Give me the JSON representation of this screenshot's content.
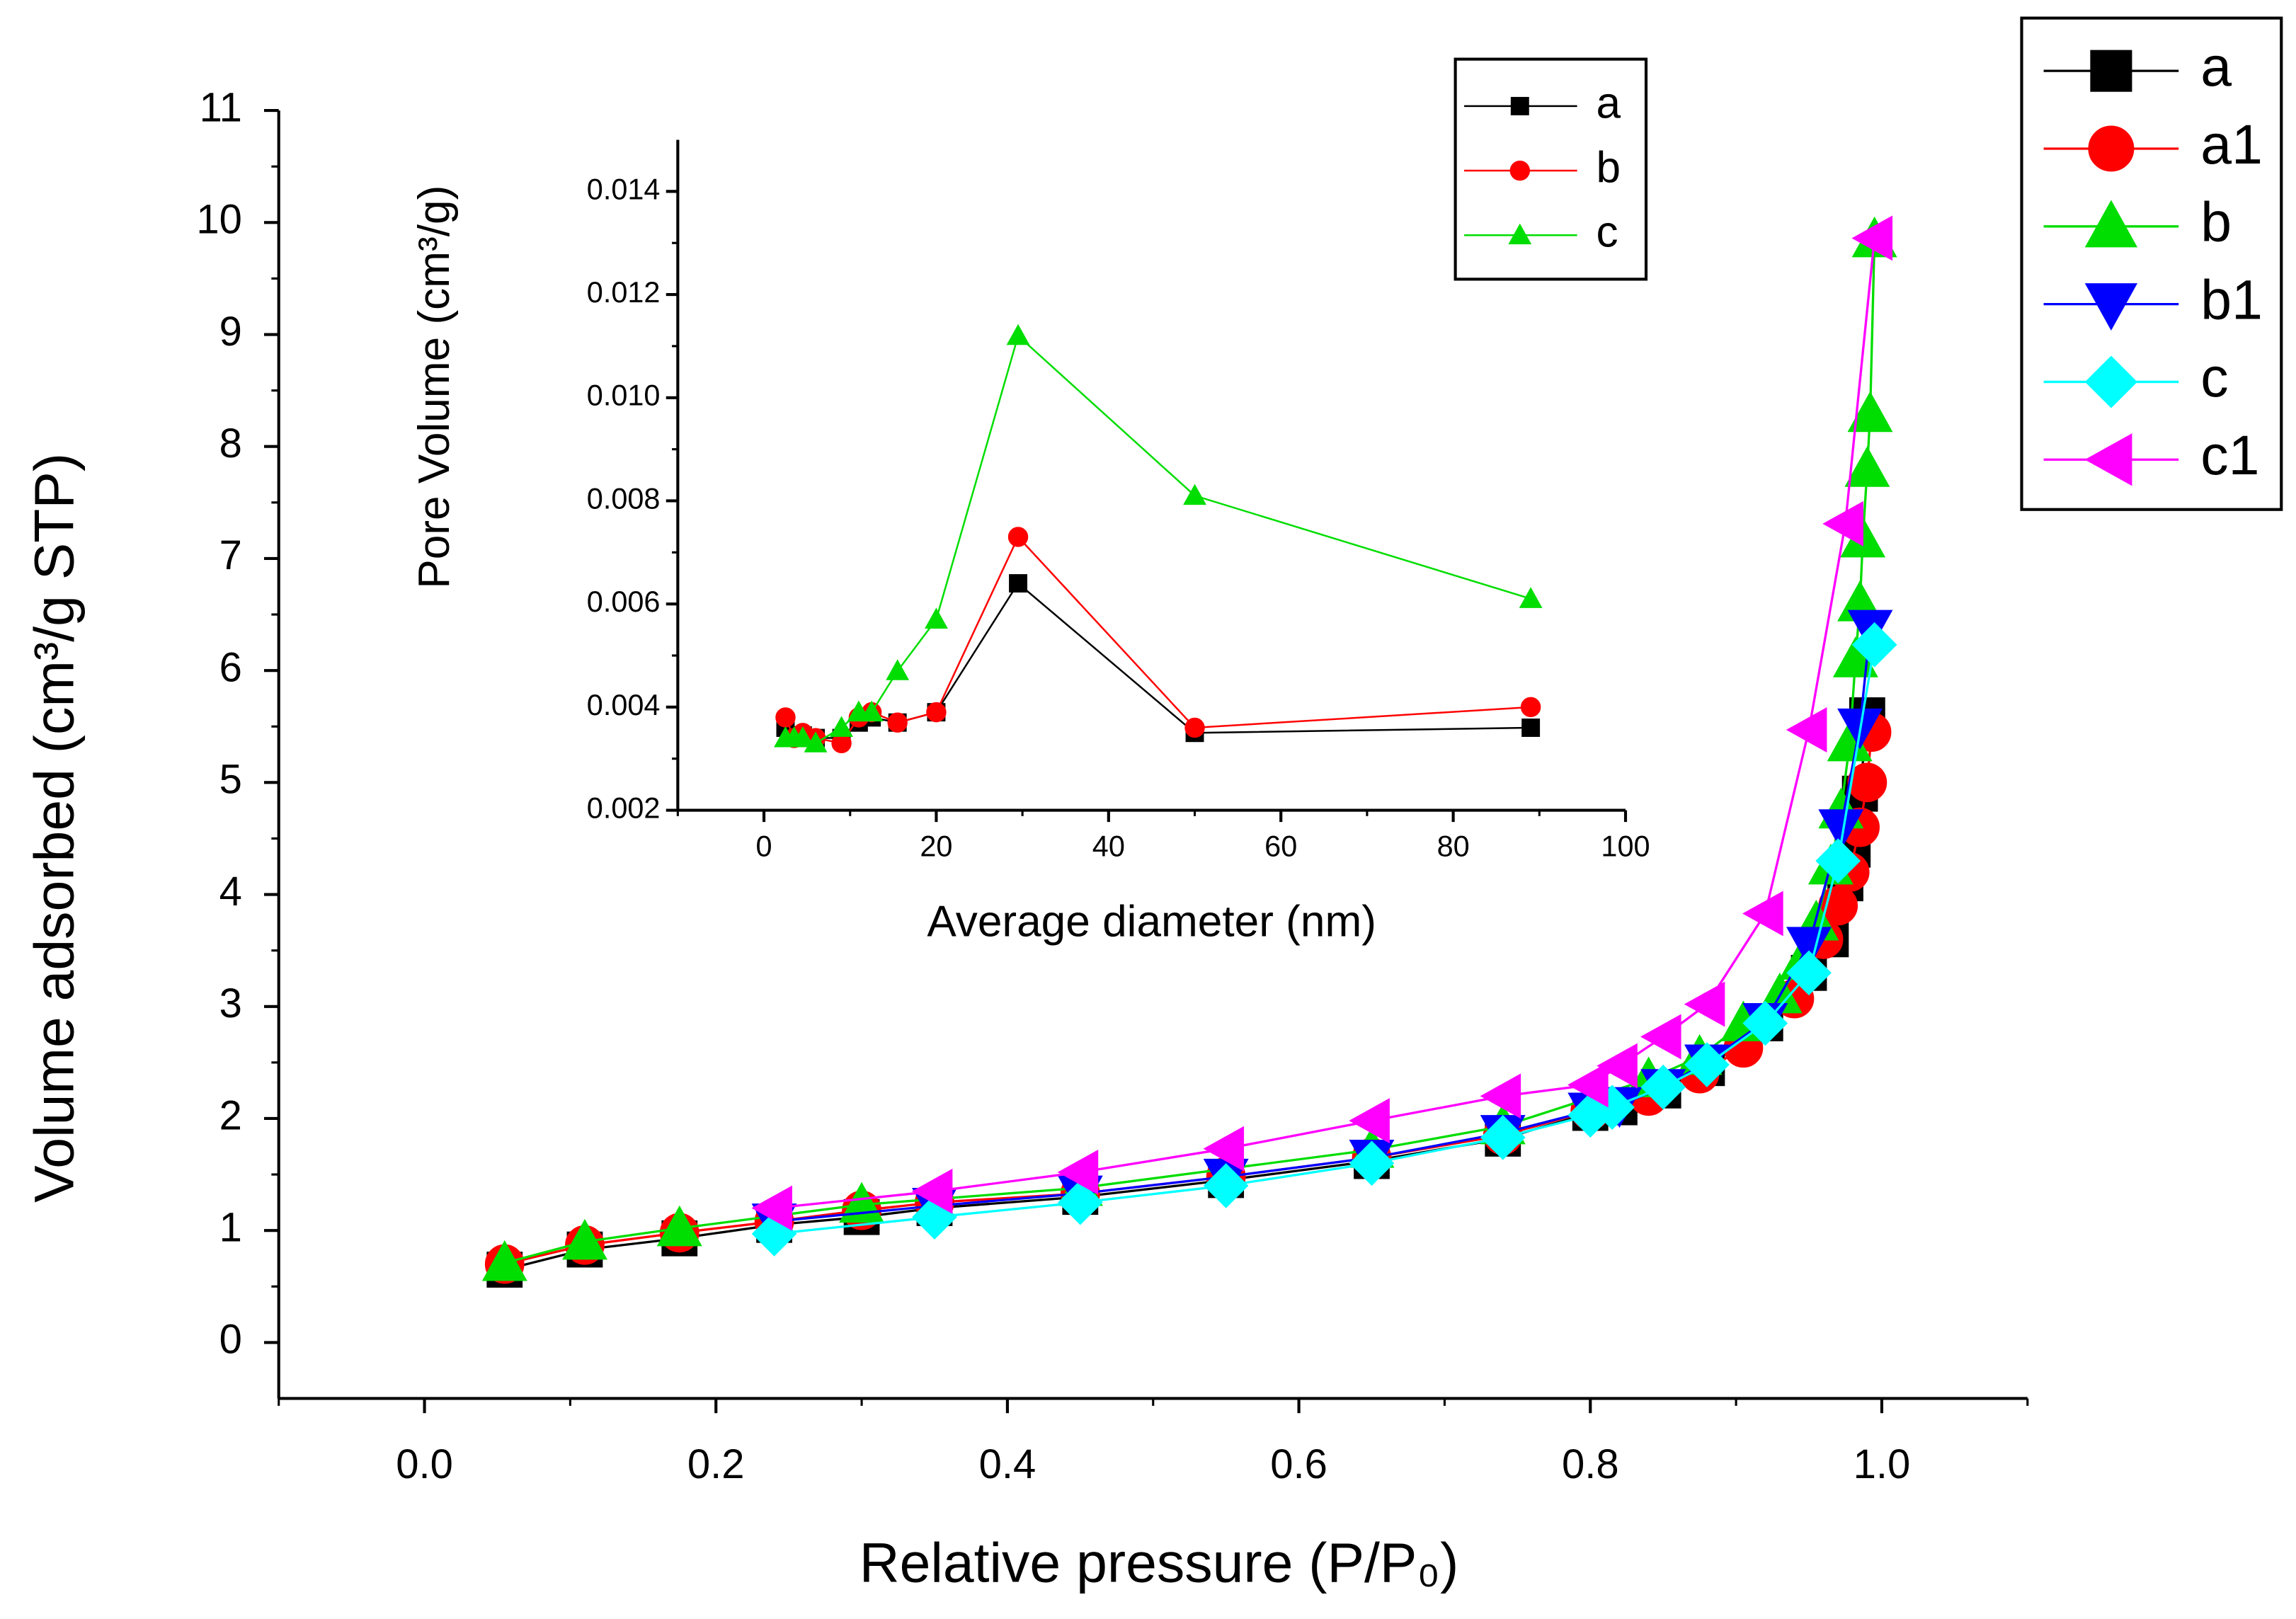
{
  "chart_data": [
    {
      "type": "line",
      "xlabel": "Relative pressure (P/P₀)",
      "ylabel": "Volume adsorbed (cm³/g STP)",
      "xlim": [
        -0.1,
        1.1
      ],
      "xticks": [
        {
          "value": 0,
          "label": "0.0"
        },
        {
          "value": 0.2,
          "label": "0.2"
        },
        {
          "value": 0.4,
          "label": "0.4"
        },
        {
          "value": 0.6,
          "label": "0.6"
        },
        {
          "value": 0.8,
          "label": "0.8"
        },
        {
          "value": 1,
          "label": "1.0"
        }
      ],
      "ylim": [
        -0.5,
        11
      ],
      "yticks": [
        0,
        1,
        2,
        3,
        4,
        5,
        6,
        7,
        8,
        9,
        10,
        11
      ],
      "legend": "top-right",
      "series": [
        {
          "name": "a",
          "color": "#000000",
          "marker": "square",
          "x": [
            0.055,
            0.11,
            0.175,
            0.24,
            0.3,
            0.35,
            0.45,
            0.55,
            0.65,
            0.74,
            0.8,
            0.82,
            0.85,
            0.88,
            0.92,
            0.95,
            0.965,
            0.975,
            0.98,
            0.985,
            0.99
          ],
          "values": [
            0.65,
            0.83,
            0.93,
            1.05,
            1.12,
            1.2,
            1.3,
            1.45,
            1.62,
            1.82,
            2.05,
            2.1,
            2.25,
            2.45,
            2.85,
            3.3,
            3.6,
            4.1,
            4.4,
            4.9,
            5.6
          ]
        },
        {
          "name": "a1",
          "color": "#ff0000",
          "marker": "circle",
          "x": [
            0.055,
            0.11,
            0.175,
            0.24,
            0.3,
            0.35,
            0.45,
            0.55,
            0.65,
            0.74,
            0.8,
            0.84,
            0.875,
            0.905,
            0.94,
            0.96,
            0.97,
            0.978,
            0.985,
            0.99,
            0.993
          ],
          "values": [
            0.7,
            0.87,
            0.98,
            1.08,
            1.18,
            1.25,
            1.33,
            1.48,
            1.65,
            1.85,
            2.07,
            2.2,
            2.4,
            2.63,
            3.07,
            3.6,
            3.9,
            4.2,
            4.6,
            5.0,
            5.45
          ]
        },
        {
          "name": "b",
          "color": "#00dd00",
          "marker": "triangle-up",
          "x": [
            0.055,
            0.11,
            0.175,
            0.3,
            0.45,
            0.65,
            0.74,
            0.84,
            0.875,
            0.905,
            0.93,
            0.945,
            0.955,
            0.965,
            0.972,
            0.978,
            0.982,
            0.985,
            0.987,
            0.99,
            0.992,
            0.995
          ],
          "values": [
            0.71,
            0.9,
            1.02,
            1.23,
            1.38,
            1.72,
            1.93,
            2.35,
            2.55,
            2.85,
            3.1,
            3.4,
            3.75,
            4.25,
            4.75,
            5.35,
            6.1,
            6.6,
            7.17,
            7.8,
            8.29,
            9.85
          ]
        },
        {
          "name": "b1",
          "color": "#0000ff",
          "marker": "triangle-down",
          "x": [
            0.24,
            0.35,
            0.45,
            0.55,
            0.65,
            0.74,
            0.8,
            0.82,
            0.85,
            0.88,
            0.92,
            0.95,
            0.972,
            0.985,
            0.992
          ],
          "values": [
            1.08,
            1.22,
            1.33,
            1.48,
            1.65,
            1.87,
            2.07,
            2.12,
            2.28,
            2.5,
            2.87,
            3.55,
            4.6,
            5.5,
            6.38
          ]
        },
        {
          "name": "c",
          "color": "#00ffff",
          "marker": "diamond",
          "x": [
            0.24,
            0.35,
            0.45,
            0.55,
            0.65,
            0.74,
            0.8,
            0.815,
            0.85,
            0.88,
            0.92,
            0.95,
            0.97,
            0.995
          ],
          "values": [
            0.97,
            1.12,
            1.25,
            1.4,
            1.6,
            1.83,
            2.03,
            2.1,
            2.28,
            2.48,
            2.85,
            3.3,
            4.3,
            6.23
          ]
        },
        {
          "name": "c1",
          "color": "#ff00ff",
          "marker": "triangle-left",
          "x": [
            0.24,
            0.35,
            0.45,
            0.55,
            0.65,
            0.74,
            0.8,
            0.82,
            0.85,
            0.88,
            0.92,
            0.95,
            0.975,
            0.995
          ],
          "values": [
            1.2,
            1.35,
            1.52,
            1.73,
            1.98,
            2.2,
            2.3,
            2.47,
            2.73,
            3.02,
            3.83,
            5.47,
            7.31,
            9.86
          ]
        }
      ]
    },
    {
      "type": "line",
      "xlabel": "Average diameter (nm)",
      "ylabel": "Pore Volume (cm³/g)",
      "xlim": [
        -10,
        100
      ],
      "xticks": [
        0,
        20,
        40,
        60,
        80,
        100
      ],
      "ylim": [
        0.002,
        0.015
      ],
      "yticks": [
        0.002,
        0.004,
        0.006,
        0.008,
        {
          "value": 0.01,
          "label": "0.010"
        },
        0.012,
        0.014
      ],
      "legend": "top-right",
      "series": [
        {
          "name": "a",
          "color": "#000000",
          "marker": "square",
          "x": [
            2.5,
            3.5,
            4.5,
            6,
            9,
            11,
            12.5,
            15.5,
            20,
            29.5,
            50,
            89
          ],
          "values": [
            0.0036,
            0.00345,
            0.00345,
            0.0034,
            0.0034,
            0.0037,
            0.0038,
            0.0037,
            0.0039,
            0.0064,
            0.0035,
            0.0036
          ]
        },
        {
          "name": "b",
          "color": "#ff0000",
          "marker": "circle",
          "x": [
            2.5,
            3.5,
            4.5,
            6,
            9,
            11,
            12.5,
            15.5,
            20,
            29.5,
            50,
            89
          ],
          "values": [
            0.0038,
            0.0034,
            0.0035,
            0.0034,
            0.0033,
            0.0038,
            0.0039,
            0.0037,
            0.0039,
            0.0073,
            0.0036,
            0.004
          ]
        },
        {
          "name": "c",
          "color": "#00dd00",
          "marker": "triangle-up",
          "x": [
            2.5,
            3.5,
            4.5,
            6,
            9,
            11,
            12.5,
            15.5,
            20,
            29.5,
            50,
            89
          ],
          "values": [
            0.0034,
            0.0034,
            0.0034,
            0.0033,
            0.0036,
            0.0039,
            0.0039,
            0.0047,
            0.0057,
            0.0112,
            0.0081,
            0.0061
          ]
        }
      ]
    }
  ]
}
